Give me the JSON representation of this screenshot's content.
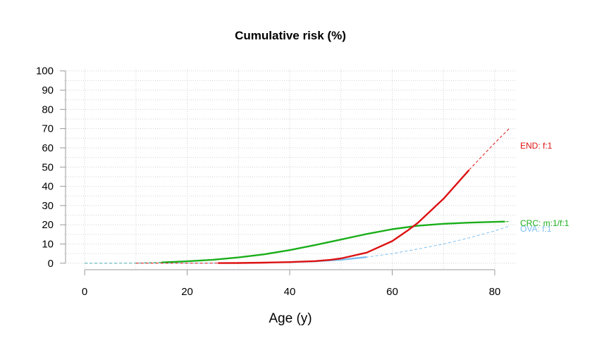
{
  "chart_data": {
    "type": "line",
    "title": "Cumulative risk (%)",
    "xlabel": "Age (y)",
    "ylabel": "",
    "xlim": [
      -4,
      84
    ],
    "ylim": [
      -3,
      101
    ],
    "xticks": [
      0,
      20,
      40,
      60,
      80
    ],
    "yticks": [
      0,
      10,
      20,
      30,
      40,
      50,
      60,
      70,
      80,
      90,
      100
    ],
    "grid": true,
    "series": [
      {
        "name": "CRC",
        "label": "CRC: m:1/f:1",
        "color": "#1aae1a",
        "solid_range": [
          15,
          82
        ],
        "x": [
          0,
          5,
          10,
          15,
          20,
          25,
          30,
          35,
          40,
          45,
          50,
          55,
          60,
          65,
          70,
          75,
          80,
          83
        ],
        "y": [
          0,
          0,
          0.1,
          0.4,
          1.0,
          1.8,
          3.0,
          4.6,
          6.8,
          9.5,
          12.3,
          15.2,
          17.7,
          19.5,
          20.5,
          21.1,
          21.5,
          21.7
        ]
      },
      {
        "name": "OVA",
        "label": "OVA: f:1",
        "color": "#7fbfef",
        "solid_range": [
          40,
          55
        ],
        "x": [
          0,
          10,
          20,
          30,
          35,
          40,
          45,
          50,
          55,
          60,
          65,
          70,
          75,
          80,
          83
        ],
        "y": [
          0,
          0,
          0,
          0.1,
          0.3,
          0.6,
          1.0,
          1.8,
          3.2,
          5.0,
          7.4,
          10.0,
          13.2,
          16.8,
          19.5
        ]
      },
      {
        "name": "END",
        "label": "END: f:1",
        "color": "#dd1111",
        "solid_range": [
          26,
          75
        ],
        "x": [
          10,
          15,
          20,
          25,
          30,
          35,
          40,
          45,
          48,
          50,
          55,
          60,
          63,
          65,
          70,
          75,
          78,
          80,
          83
        ],
        "y": [
          0,
          0,
          0,
          0.05,
          0.1,
          0.3,
          0.6,
          1.1,
          1.8,
          2.5,
          5.5,
          11.5,
          17.0,
          21.0,
          33.5,
          48.5,
          57.0,
          62.5,
          70.5
        ]
      }
    ]
  }
}
